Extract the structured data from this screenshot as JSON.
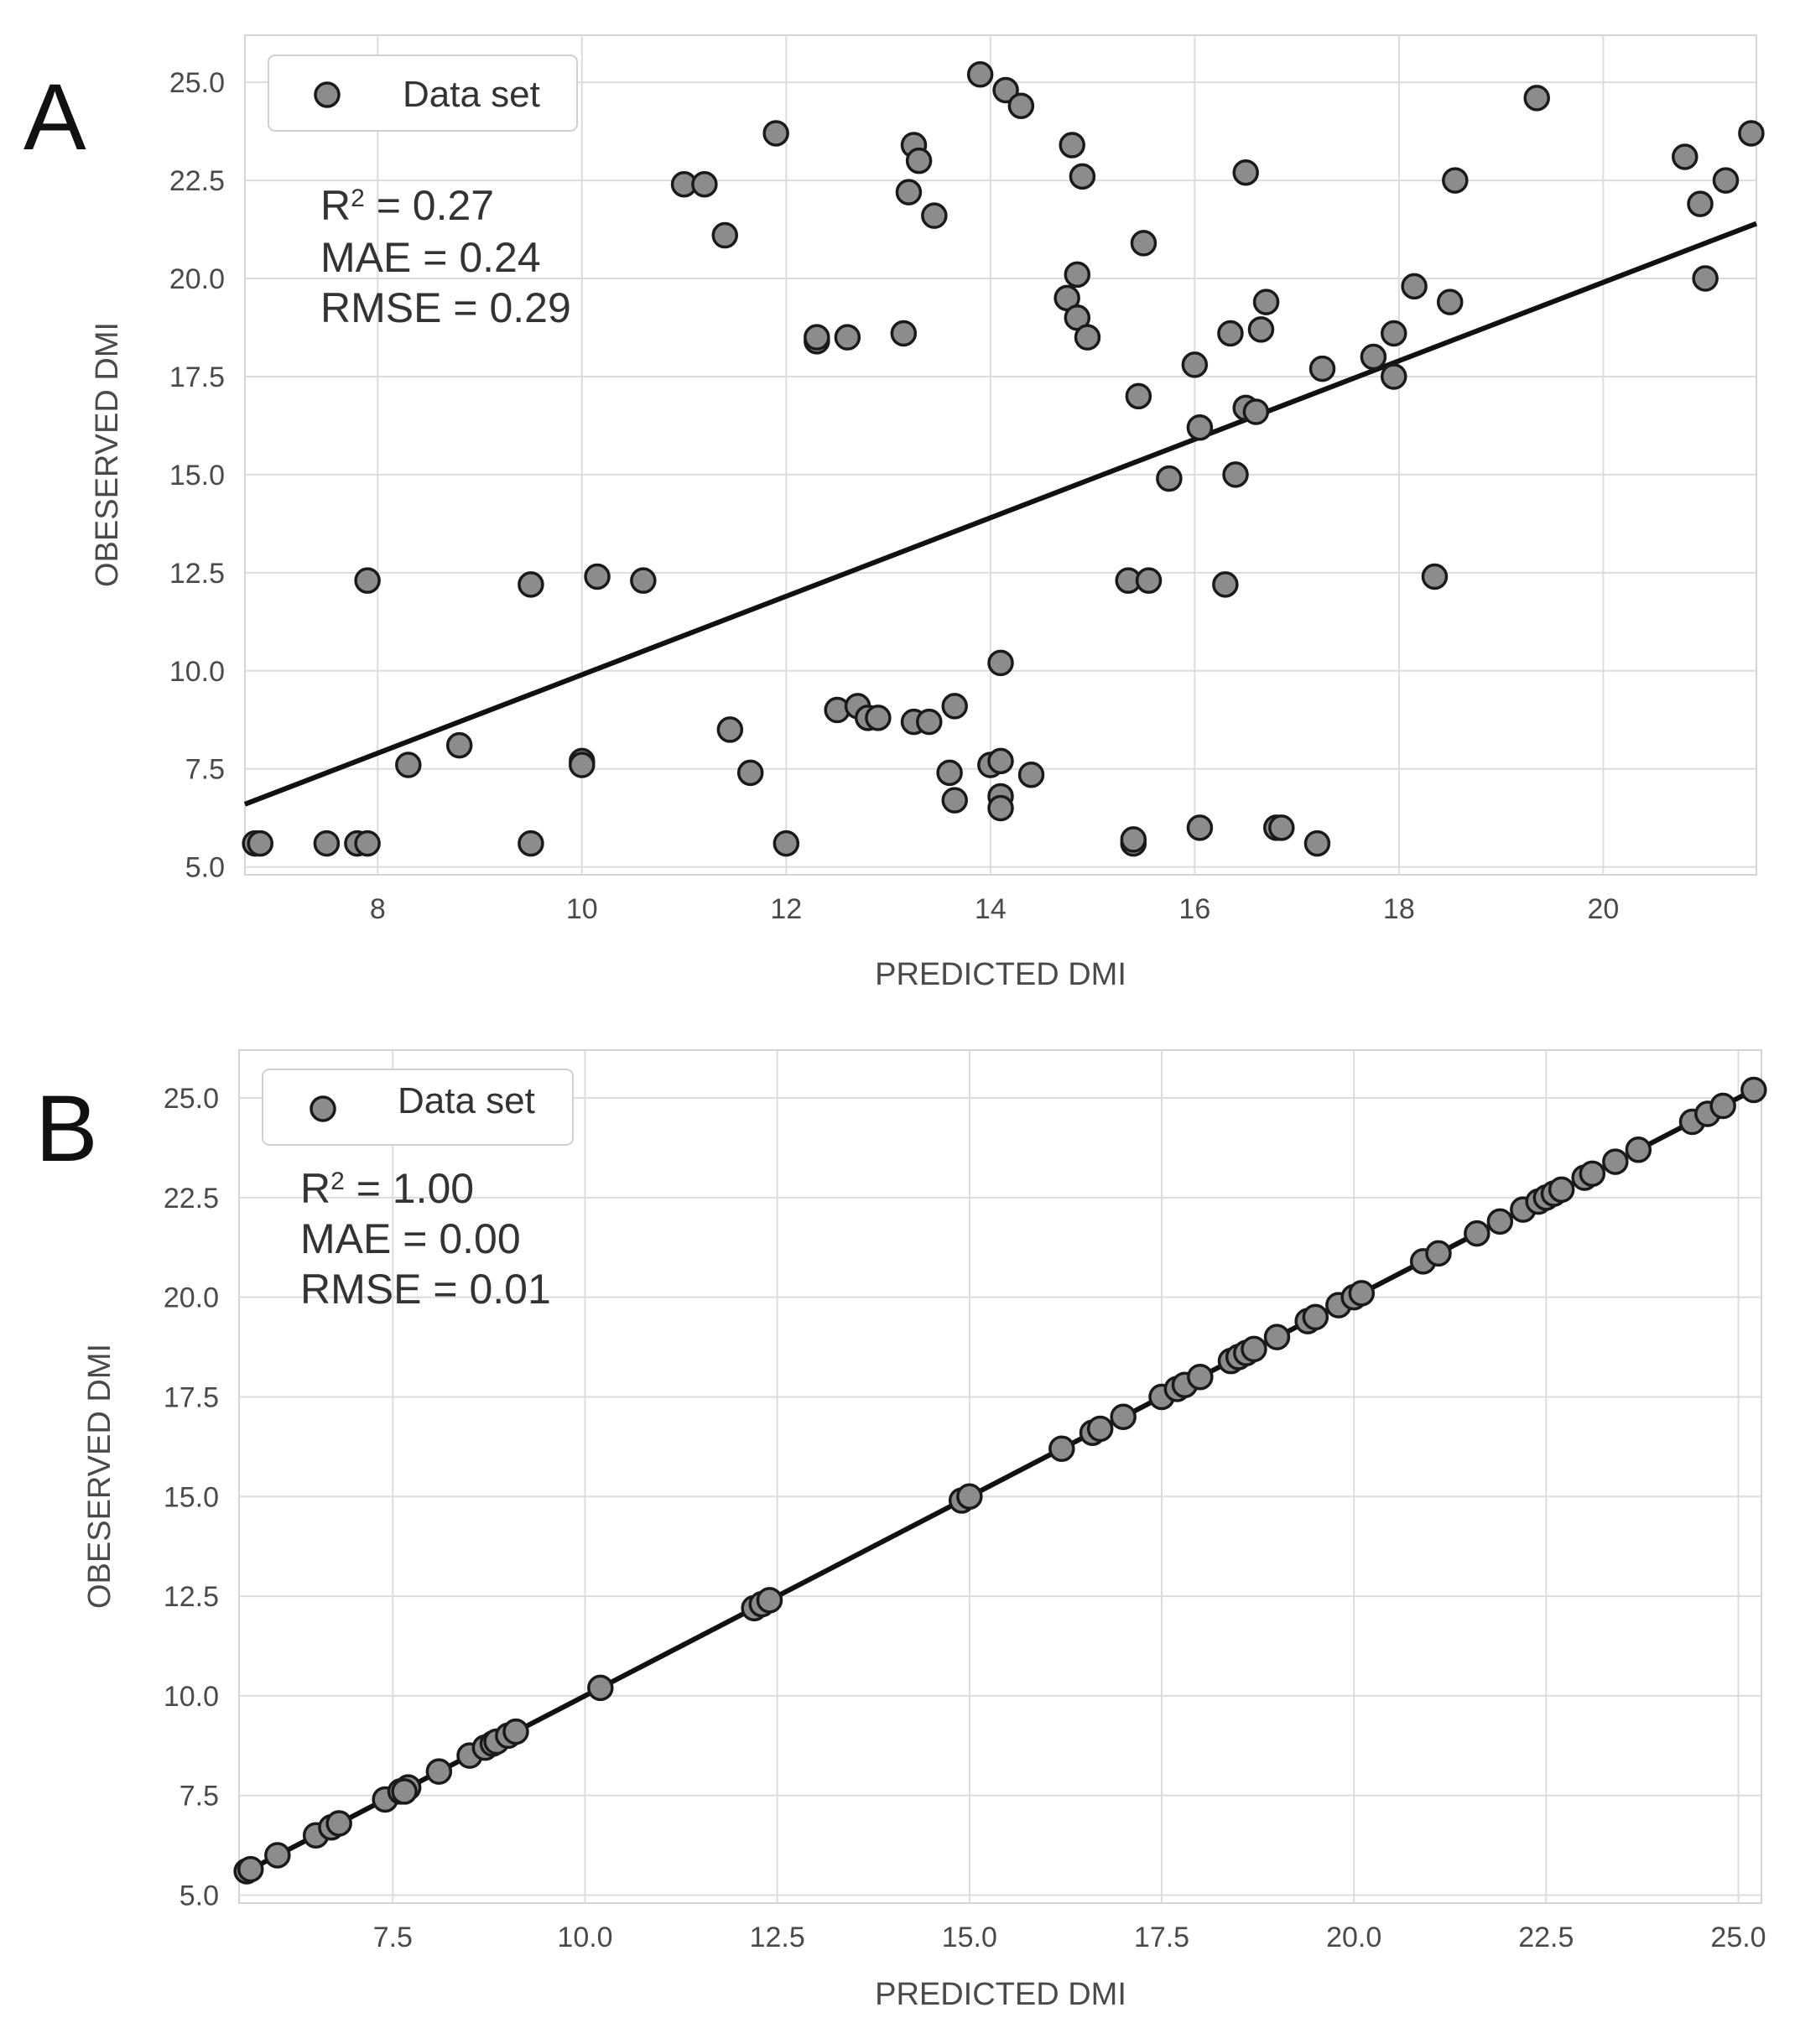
{
  "chart_data": [
    {
      "type": "scatter",
      "panel_label": "A",
      "xlabel": "PREDICTED DMI",
      "ylabel": "OBESERVED DMI",
      "xlim": [
        6.7,
        21.5
      ],
      "ylim": [
        4.8,
        26.2
      ],
      "xticks": [
        8,
        10,
        12,
        14,
        16,
        18,
        20
      ],
      "xtick_labels": [
        "8",
        "10",
        "12",
        "14",
        "16",
        "18",
        "20"
      ],
      "yticks": [
        5.0,
        7.5,
        10.0,
        12.5,
        15.0,
        17.5,
        20.0,
        22.5,
        25.0
      ],
      "ytick_labels": [
        "5.0",
        "7.5",
        "10.0",
        "12.5",
        "15.0",
        "17.5",
        "20.0",
        "22.5",
        "25.0"
      ],
      "grid": true,
      "legend": {
        "label": "Data set",
        "position": "top-left"
      },
      "stats": {
        "r2_prefix": "R",
        "r2_sup": "2",
        "r2_value": " = 0.27",
        "mae": "MAE = 0.24",
        "rmse": "RMSE = 0.29"
      },
      "fit_line": {
        "x": [
          6.7,
          21.5
        ],
        "y": [
          6.6,
          21.4
        ]
      },
      "series": [
        {
          "name": "Data set",
          "points": [
            [
              6.8,
              5.6
            ],
            [
              6.85,
              5.6
            ],
            [
              7.5,
              5.6
            ],
            [
              7.8,
              5.6
            ],
            [
              7.9,
              5.6
            ],
            [
              7.9,
              12.3
            ],
            [
              8.3,
              7.6
            ],
            [
              8.8,
              8.1
            ],
            [
              9.5,
              5.6
            ],
            [
              9.5,
              12.2
            ],
            [
              10.0,
              7.7
            ],
            [
              10.0,
              7.6
            ],
            [
              10.15,
              12.4
            ],
            [
              10.6,
              12.3
            ],
            [
              11.0,
              22.4
            ],
            [
              11.2,
              22.4
            ],
            [
              11.4,
              21.1
            ],
            [
              11.45,
              8.5
            ],
            [
              11.65,
              7.4
            ],
            [
              11.9,
              23.7
            ],
            [
              12.0,
              5.6
            ],
            [
              12.3,
              18.4
            ],
            [
              12.3,
              18.5
            ],
            [
              12.5,
              9.0
            ],
            [
              12.6,
              18.5
            ],
            [
              12.7,
              9.1
            ],
            [
              12.8,
              8.8
            ],
            [
              12.9,
              8.8
            ],
            [
              13.15,
              18.6
            ],
            [
              13.2,
              22.2
            ],
            [
              13.25,
              23.4
            ],
            [
              13.3,
              23.0
            ],
            [
              13.25,
              8.7
            ],
            [
              13.4,
              8.7
            ],
            [
              13.45,
              21.6
            ],
            [
              13.6,
              7.4
            ],
            [
              13.65,
              9.1
            ],
            [
              13.65,
              6.7
            ],
            [
              13.9,
              25.2
            ],
            [
              14.0,
              7.6
            ],
            [
              14.1,
              7.7
            ],
            [
              14.1,
              10.2
            ],
            [
              14.1,
              6.8
            ],
            [
              14.1,
              6.5
            ],
            [
              14.15,
              24.8
            ],
            [
              14.3,
              24.4
            ],
            [
              14.4,
              7.35
            ],
            [
              14.75,
              19.5
            ],
            [
              14.8,
              23.4
            ],
            [
              14.85,
              19.0
            ],
            [
              14.85,
              20.1
            ],
            [
              14.9,
              22.6
            ],
            [
              14.95,
              18.5
            ],
            [
              15.35,
              12.3
            ],
            [
              15.4,
              5.6
            ],
            [
              15.4,
              5.7
            ],
            [
              15.45,
              17.0
            ],
            [
              15.5,
              20.9
            ],
            [
              15.55,
              12.3
            ],
            [
              15.75,
              14.9
            ],
            [
              16.0,
              17.8
            ],
            [
              16.05,
              6.0
            ],
            [
              16.05,
              16.2
            ],
            [
              16.3,
              12.2
            ],
            [
              16.35,
              18.6
            ],
            [
              16.4,
              15.0
            ],
            [
              16.5,
              16.7
            ],
            [
              16.5,
              22.7
            ],
            [
              16.6,
              16.6
            ],
            [
              16.65,
              18.7
            ],
            [
              16.7,
              19.4
            ],
            [
              16.8,
              6.0
            ],
            [
              16.85,
              6.0
            ],
            [
              17.2,
              5.6
            ],
            [
              17.25,
              17.7
            ],
            [
              17.75,
              18.0
            ],
            [
              17.95,
              17.5
            ],
            [
              17.95,
              18.6
            ],
            [
              18.15,
              19.8
            ],
            [
              18.35,
              12.4
            ],
            [
              18.5,
              19.4
            ],
            [
              18.55,
              22.5
            ],
            [
              19.35,
              24.6
            ],
            [
              20.8,
              23.1
            ],
            [
              20.95,
              21.9
            ],
            [
              21.0,
              20.0
            ],
            [
              21.2,
              22.5
            ],
            [
              21.45,
              23.7
            ]
          ]
        }
      ]
    },
    {
      "type": "scatter",
      "panel_label": "B",
      "xlabel": "PREDICTED DMI",
      "ylabel": "OBESERVED DMI",
      "xlim": [
        5.5,
        25.3
      ],
      "ylim": [
        4.8,
        26.2
      ],
      "xticks": [
        7.5,
        10.0,
        12.5,
        15.0,
        17.5,
        20.0,
        22.5,
        25.0
      ],
      "xtick_labels": [
        "7.5",
        "10.0",
        "12.5",
        "15.0",
        "17.5",
        "20.0",
        "22.5",
        "25.0"
      ],
      "yticks": [
        5.0,
        7.5,
        10.0,
        12.5,
        15.0,
        17.5,
        20.0,
        22.5,
        25.0
      ],
      "ytick_labels": [
        "5.0",
        "7.5",
        "10.0",
        "12.5",
        "15.0",
        "17.5",
        "20.0",
        "22.5",
        "25.0"
      ],
      "grid": true,
      "legend": {
        "label": "Data set",
        "position": "top-left"
      },
      "stats": {
        "r2_prefix": "R",
        "r2_sup": "2",
        "r2_value": " = 1.00",
        "mae": "MAE = 0.00",
        "rmse": "RMSE = 0.01"
      },
      "fit_line": {
        "x": [
          5.5,
          25.3
        ],
        "y": [
          5.5,
          25.3
        ]
      },
      "series": [
        {
          "name": "Data set",
          "points": [
            [
              5.6,
              5.6
            ],
            [
              5.65,
              5.65
            ],
            [
              6.0,
              6.0
            ],
            [
              6.5,
              6.5
            ],
            [
              6.7,
              6.7
            ],
            [
              6.8,
              6.8
            ],
            [
              7.4,
              7.4
            ],
            [
              7.6,
              7.6
            ],
            [
              7.7,
              7.7
            ],
            [
              7.65,
              7.6
            ],
            [
              8.1,
              8.1
            ],
            [
              8.5,
              8.5
            ],
            [
              8.7,
              8.7
            ],
            [
              8.8,
              8.8
            ],
            [
              8.85,
              8.85
            ],
            [
              9.0,
              9.0
            ],
            [
              9.1,
              9.1
            ],
            [
              10.2,
              10.2
            ],
            [
              12.2,
              12.2
            ],
            [
              12.3,
              12.3
            ],
            [
              12.4,
              12.4
            ],
            [
              14.9,
              14.9
            ],
            [
              15.0,
              15.0
            ],
            [
              16.2,
              16.2
            ],
            [
              16.6,
              16.6
            ],
            [
              16.7,
              16.7
            ],
            [
              17.0,
              17.0
            ],
            [
              17.5,
              17.5
            ],
            [
              17.7,
              17.7
            ],
            [
              17.8,
              17.8
            ],
            [
              18.0,
              18.0
            ],
            [
              18.4,
              18.4
            ],
            [
              18.5,
              18.5
            ],
            [
              18.6,
              18.6
            ],
            [
              18.7,
              18.7
            ],
            [
              19.0,
              19.0
            ],
            [
              19.4,
              19.4
            ],
            [
              19.5,
              19.5
            ],
            [
              19.8,
              19.8
            ],
            [
              20.0,
              20.0
            ],
            [
              20.1,
              20.1
            ],
            [
              20.9,
              20.9
            ],
            [
              21.1,
              21.1
            ],
            [
              21.6,
              21.6
            ],
            [
              21.9,
              21.9
            ],
            [
              22.2,
              22.2
            ],
            [
              22.4,
              22.4
            ],
            [
              22.5,
              22.5
            ],
            [
              22.6,
              22.6
            ],
            [
              22.7,
              22.7
            ],
            [
              23.0,
              23.0
            ],
            [
              23.1,
              23.1
            ],
            [
              23.4,
              23.4
            ],
            [
              23.7,
              23.7
            ],
            [
              24.4,
              24.4
            ],
            [
              24.6,
              24.6
            ],
            [
              24.8,
              24.8
            ],
            [
              25.2,
              25.2
            ]
          ]
        }
      ]
    }
  ]
}
